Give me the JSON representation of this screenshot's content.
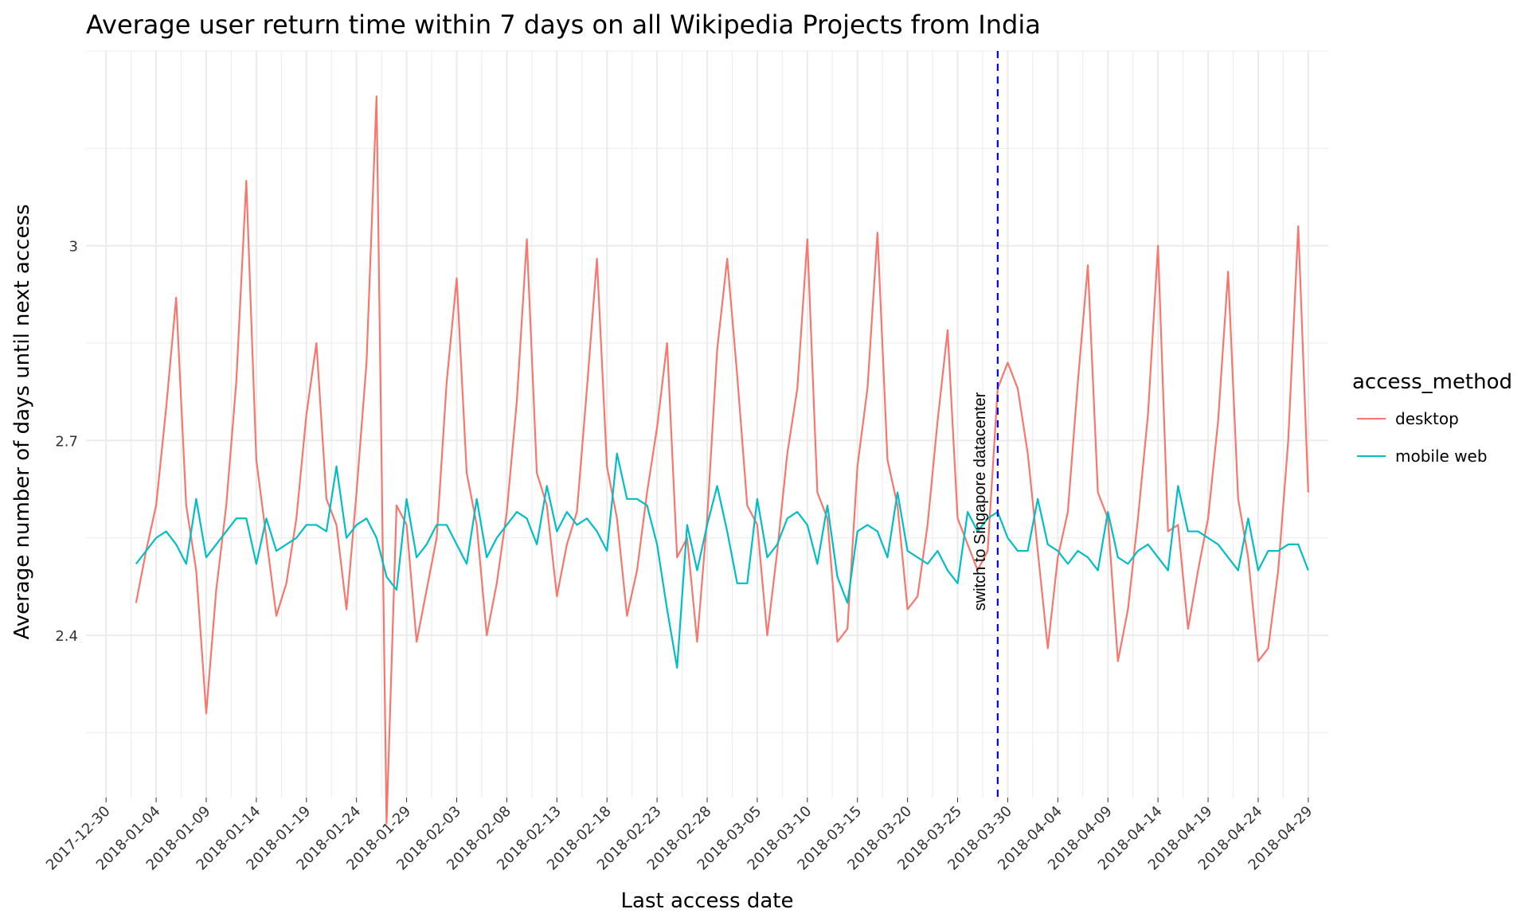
{
  "chart_data": {
    "type": "line",
    "title": "Average user return time within 7 days on all Wikipedia Projects from India",
    "xlabel": "Last access date",
    "ylabel": "Average number of days until next access",
    "x_start": "2018-01-02",
    "xlim": [
      "2017-12-28",
      "2018-05-01"
    ],
    "ylim": [
      2.15,
      3.3
    ],
    "yticks": [
      2.4,
      2.7,
      3.0
    ],
    "ytick_labels": [
      "2.4",
      "2.7",
      "3"
    ],
    "xtick_labels": [
      "2017-12-30",
      "2018-01-04",
      "2018-01-09",
      "2018-01-14",
      "2018-01-19",
      "2018-01-24",
      "2018-01-29",
      "2018-02-03",
      "2018-02-08",
      "2018-02-13",
      "2018-02-18",
      "2018-02-23",
      "2018-02-28",
      "2018-03-05",
      "2018-03-10",
      "2018-03-15",
      "2018-03-20",
      "2018-03-25",
      "2018-03-30",
      "2018-04-04",
      "2018-04-09",
      "2018-04-14",
      "2018-04-19",
      "2018-04-24",
      "2018-04-29"
    ],
    "grid": true,
    "legend": {
      "title": "access_method",
      "position": "right"
    },
    "annotation": {
      "x": "2018-03-29",
      "text": "switch to Singapore datacenter",
      "color": "#0000ee"
    },
    "series": [
      {
        "name": "desktop",
        "color": "#f8766d",
        "values": [
          2.45,
          2.53,
          2.6,
          2.75,
          2.92,
          2.6,
          2.5,
          2.28,
          2.47,
          2.6,
          2.79,
          3.1,
          2.67,
          2.55,
          2.43,
          2.48,
          2.58,
          2.74,
          2.85,
          2.61,
          2.57,
          2.44,
          2.62,
          2.82,
          3.23,
          2.11,
          2.6,
          2.57,
          2.39,
          2.47,
          2.55,
          2.79,
          2.95,
          2.65,
          2.57,
          2.4,
          2.48,
          2.59,
          2.76,
          3.01,
          2.65,
          2.6,
          2.46,
          2.54,
          2.59,
          2.78,
          2.98,
          2.66,
          2.58,
          2.43,
          2.5,
          2.62,
          2.72,
          2.85,
          2.52,
          2.55,
          2.39,
          2.58,
          2.84,
          2.98,
          2.8,
          2.6,
          2.57,
          2.4,
          2.53,
          2.68,
          2.78,
          3.01,
          2.62,
          2.58,
          2.39,
          2.41,
          2.66,
          2.78,
          3.02,
          2.67,
          2.6,
          2.44,
          2.46,
          2.57,
          2.73,
          2.87,
          2.58,
          2.54,
          2.5,
          2.53,
          2.78,
          2.82,
          2.78,
          2.68,
          2.53,
          2.38,
          2.52,
          2.59,
          2.79,
          2.97,
          2.62,
          2.58,
          2.36,
          2.44,
          2.58,
          2.74,
          3.0,
          2.56,
          2.57,
          2.41,
          2.5,
          2.58,
          2.73,
          2.96,
          2.61,
          2.52,
          2.36,
          2.38,
          2.5,
          2.7,
          3.03,
          2.62
        ]
      },
      {
        "name": "mobile web",
        "color": "#00bfc4",
        "values": [
          2.51,
          2.53,
          2.55,
          2.56,
          2.54,
          2.51,
          2.61,
          2.52,
          2.54,
          2.56,
          2.58,
          2.58,
          2.51,
          2.58,
          2.53,
          2.54,
          2.55,
          2.57,
          2.57,
          2.56,
          2.66,
          2.55,
          2.57,
          2.58,
          2.55,
          2.49,
          2.47,
          2.61,
          2.52,
          2.54,
          2.57,
          2.57,
          2.54,
          2.51,
          2.61,
          2.52,
          2.55,
          2.57,
          2.59,
          2.58,
          2.54,
          2.63,
          2.56,
          2.59,
          2.57,
          2.58,
          2.56,
          2.53,
          2.68,
          2.61,
          2.61,
          2.6,
          2.54,
          2.44,
          2.35,
          2.57,
          2.5,
          2.57,
          2.63,
          2.56,
          2.48,
          2.48,
          2.61,
          2.52,
          2.54,
          2.58,
          2.59,
          2.57,
          2.51,
          2.6,
          2.49,
          2.45,
          2.56,
          2.57,
          2.56,
          2.52,
          2.62,
          2.53,
          2.52,
          2.51,
          2.53,
          2.5,
          2.48,
          2.59,
          2.56,
          2.58,
          2.59,
          2.55,
          2.53,
          2.53,
          2.61,
          2.54,
          2.53,
          2.51,
          2.53,
          2.52,
          2.5,
          2.59,
          2.52,
          2.51,
          2.53,
          2.54,
          2.52,
          2.5,
          2.63,
          2.56,
          2.56,
          2.55,
          2.54,
          2.52,
          2.5,
          2.58,
          2.5,
          2.53,
          2.53,
          2.54,
          2.54,
          2.5
        ]
      }
    ]
  }
}
